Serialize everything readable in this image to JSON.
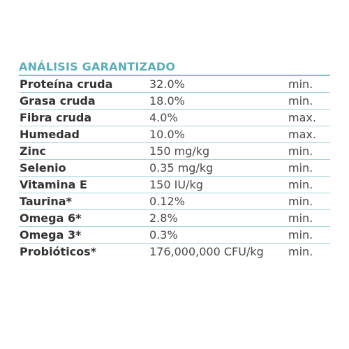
{
  "title": "ANÁLISIS GARANTIZADO",
  "rows": [
    {
      "name": "Proteína cruda",
      "value": "32.0%",
      "qualifier": "min."
    },
    {
      "name": "Grasa cruda",
      "value": "18.0%",
      "qualifier": "min."
    },
    {
      "name": "Fibra cruda",
      "value": "4.0%",
      "qualifier": "max."
    },
    {
      "name": "Humedad",
      "value": "10.0%",
      "qualifier": "max."
    },
    {
      "name": "Zinc",
      "value": "150 mg/kg",
      "qualifier": "min."
    },
    {
      "name": "Selenio",
      "value": "0.35 mg/kg",
      "qualifier": "min."
    },
    {
      "name": "Vitamina E",
      "value": "150 IU/kg",
      "qualifier": "min."
    },
    {
      "name": "Taurina*",
      "value": "0.12%",
      "qualifier": "min."
    },
    {
      "name": "Omega 6*",
      "value": "2.8%",
      "qualifier": "min."
    },
    {
      "name": "Omega 3*",
      "value": "0.3%",
      "qualifier": "min."
    },
    {
      "name": "Probióticos*",
      "value": "176,000,000 CFU/kg",
      "qualifier": "min."
    }
  ],
  "colors": {
    "title": "#5aaeb8",
    "divider": "#a7d6db",
    "text": "#333333"
  }
}
